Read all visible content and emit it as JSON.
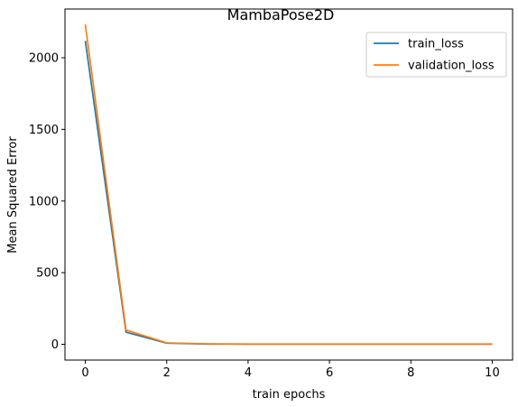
{
  "chart_data": {
    "type": "line",
    "title": "MambaPose2D",
    "xlabel": "train epochs",
    "ylabel": "Mean Squared Error",
    "xlim": [
      -0.5,
      10.5
    ],
    "ylim": [
      -110,
      2340
    ],
    "xticks": [
      0,
      2,
      4,
      6,
      8,
      10
    ],
    "yticks": [
      0,
      500,
      1000,
      1500,
      2000
    ],
    "grid": false,
    "legend_position": "top-right",
    "series": [
      {
        "name": "train_loss",
        "color": "#1f77b4",
        "x": [
          0,
          1,
          2,
          3,
          4,
          5,
          6,
          7,
          8,
          9,
          10
        ],
        "y": [
          2118,
          85,
          8,
          2,
          1,
          1,
          1,
          1,
          1,
          1,
          1
        ]
      },
      {
        "name": "validation_loss",
        "color": "#ff7f0e",
        "x": [
          0,
          1,
          2,
          3,
          4,
          5,
          6,
          7,
          8,
          9,
          10
        ],
        "y": [
          2232,
          100,
          10,
          3,
          2,
          2,
          2,
          2,
          2,
          2,
          2
        ]
      }
    ]
  }
}
